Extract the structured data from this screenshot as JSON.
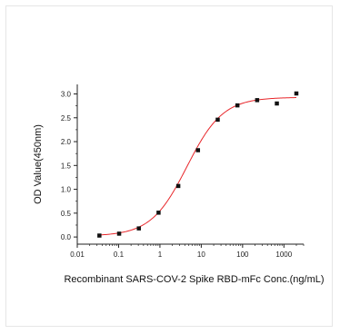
{
  "chart_data": {
    "type": "scatter",
    "xlabel": "Recombinant SARS-COV-2 Spike RBD-mFc  Conc.(ng/mL)",
    "ylabel": "OD Value(450nm)",
    "x_scale": "log",
    "xlim": [
      0.01,
      3000
    ],
    "ylim": [
      -0.15,
      3.2
    ],
    "x_ticks": [
      0.01,
      0.1,
      1,
      10,
      100,
      1000
    ],
    "x_tick_labels": [
      "0.01",
      "0.1",
      "1",
      "10",
      "100",
      "1000"
    ],
    "y_ticks": [
      0.0,
      0.5,
      1.0,
      1.5,
      2.0,
      2.5,
      3.0
    ],
    "y_tick_labels": [
      "0.0",
      "0.5",
      "1.0",
      "1.5",
      "2.0",
      "2.5",
      "3.0"
    ],
    "grid": false,
    "points": {
      "x": [
        0.0343,
        0.103,
        0.309,
        0.926,
        2.78,
        8.33,
        25.0,
        75.0,
        225,
        675,
        2000
      ],
      "y": [
        0.03,
        0.07,
        0.18,
        0.51,
        1.07,
        1.82,
        2.46,
        2.76,
        2.87,
        2.8,
        3.01
      ],
      "color": "#111111"
    },
    "fit_curve": {
      "model": "4PL",
      "bottom": 0.02,
      "top": 2.93,
      "ec50": 4.5,
      "hill": 1.0,
      "color": "#e8262a"
    }
  }
}
